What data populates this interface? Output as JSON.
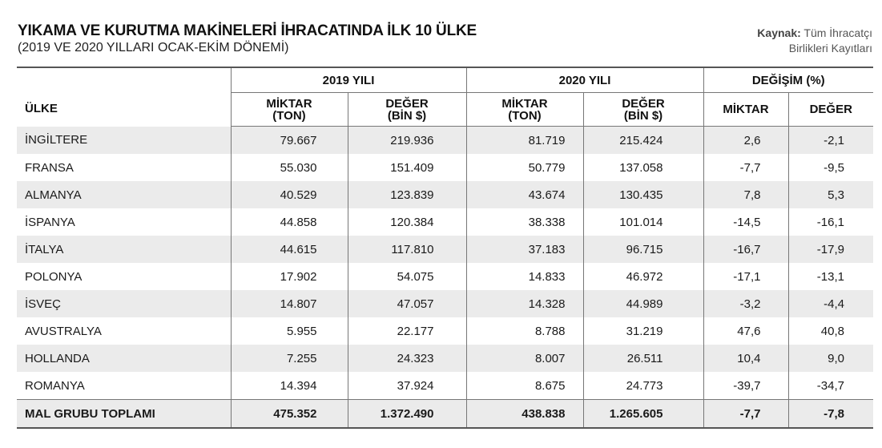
{
  "title": "YIKAMA VE KURUTMA MAKİNELERİ İHRACATINDA İLK 10 ÜLKE",
  "subtitle": "(2019 VE 2020 YILLARI OCAK-EKİM DÖNEMİ)",
  "source": {
    "label": "Kaynak:",
    "line1": "Tüm İhracatçı",
    "line2": "Birlikleri Kayıtları"
  },
  "chart_data": {
    "type": "table",
    "header": {
      "country": "ÜLKE",
      "groups": [
        "2019 YILI",
        "2020 YILI",
        "DEĞİŞİM (%)"
      ],
      "subcolumns": [
        {
          "line1": "MİKTAR",
          "line2": "(TON)"
        },
        {
          "line1": "DEĞER",
          "line2": "(BİN $)"
        },
        {
          "line1": "MİKTAR",
          "line2": "(TON)"
        },
        {
          "line1": "DEĞER",
          "line2": "(BİN $)"
        },
        {
          "line1": "MİKTAR",
          "line2": ""
        },
        {
          "line1": "DEĞER",
          "line2": ""
        }
      ]
    },
    "rows": [
      {
        "country": "İNGİLTERE",
        "values": [
          "79.667",
          "219.936",
          "81.719",
          "215.424",
          "2,6",
          "-2,1"
        ]
      },
      {
        "country": "FRANSA",
        "values": [
          "55.030",
          "151.409",
          "50.779",
          "137.058",
          "-7,7",
          "-9,5"
        ]
      },
      {
        "country": "ALMANYA",
        "values": [
          "40.529",
          "123.839",
          "43.674",
          "130.435",
          "7,8",
          "5,3"
        ]
      },
      {
        "country": "İSPANYA",
        "values": [
          "44.858",
          "120.384",
          "38.338",
          "101.014",
          "-14,5",
          "-16,1"
        ]
      },
      {
        "country": "İTALYA",
        "values": [
          "44.615",
          "117.810",
          "37.183",
          "96.715",
          "-16,7",
          "-17,9"
        ]
      },
      {
        "country": "POLONYA",
        "values": [
          "17.902",
          "54.075",
          "14.833",
          "46.972",
          "-17,1",
          "-13,1"
        ]
      },
      {
        "country": "İSVEÇ",
        "values": [
          "14.807",
          "47.057",
          "14.328",
          "44.989",
          "-3,2",
          "-4,4"
        ]
      },
      {
        "country": "AVUSTRALYA",
        "values": [
          "5.955",
          "22.177",
          "8.788",
          "31.219",
          "47,6",
          "40,8"
        ]
      },
      {
        "country": "HOLLANDA",
        "values": [
          "7.255",
          "24.323",
          "8.007",
          "26.511",
          "10,4",
          "9,0"
        ]
      },
      {
        "country": "ROMANYA",
        "values": [
          "14.394",
          "37.924",
          "8.675",
          "24.773",
          "-39,7",
          "-34,7"
        ]
      }
    ],
    "total": {
      "country": "MAL GRUBU TOPLAMI",
      "values": [
        "475.352",
        "1.372.490",
        "438.838",
        "1.265.605",
        "-7,7",
        "-7,8"
      ]
    }
  }
}
